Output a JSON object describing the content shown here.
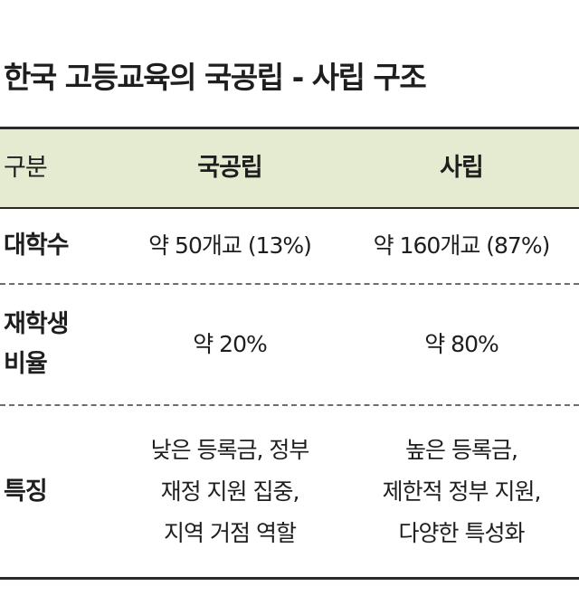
{
  "title": "한국 고등교육의 국공립 - 사립 구조",
  "header": {
    "category": "구분",
    "public": "국공립",
    "private": "사립"
  },
  "rows": [
    {
      "label_lines": [
        "대학수"
      ],
      "public_lines": [
        "약 50개교 (13%)"
      ],
      "private_lines": [
        "약 160개교 (87%)"
      ]
    },
    {
      "label_lines": [
        "재학생",
        "비율"
      ],
      "public_lines": [
        "약 20%"
      ],
      "private_lines": [
        "약 80%"
      ]
    },
    {
      "label_lines": [
        "특징"
      ],
      "public_lines": [
        "낮은 등록금, 정부",
        "재정 지원 집중,",
        "지역 거점 역할"
      ],
      "private_lines": [
        "높은 등록금,",
        "제한적 정부 지원,",
        "다양한 특성화"
      ]
    }
  ]
}
